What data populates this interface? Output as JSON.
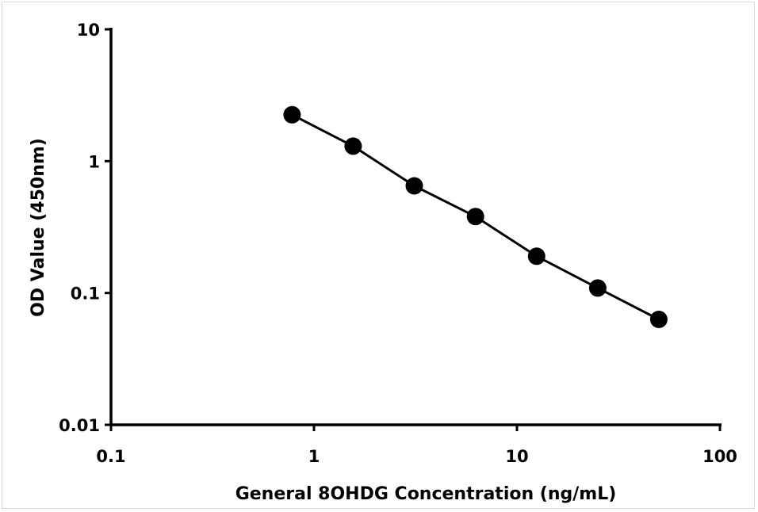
{
  "chart_data": {
    "type": "line",
    "xlabel": "General 8OHDG Concentration (ng/mL)",
    "ylabel": "OD Value (450nm)",
    "x_scale": "log",
    "y_scale": "log",
    "xlim": [
      0.1,
      100
    ],
    "ylim": [
      0.01,
      10
    ],
    "x_ticks": [
      "0.1",
      "1",
      "10",
      "100"
    ],
    "y_ticks": [
      "0.01",
      "0.1",
      "1",
      "10"
    ],
    "grid": false,
    "legend": "none",
    "series": [
      {
        "x": [
          0.78,
          1.56,
          3.12,
          6.25,
          12.5,
          25,
          50
        ],
        "y": [
          2.25,
          1.3,
          0.65,
          0.38,
          0.19,
          0.109,
          0.063
        ],
        "color": "#000000",
        "marker": "circle"
      }
    ]
  }
}
